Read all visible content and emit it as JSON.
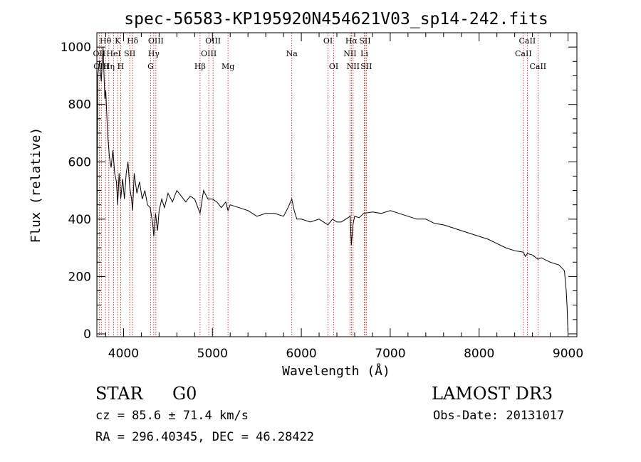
{
  "chart_data": {
    "type": "line",
    "title": "spec-56583-KP195920N454621V03_sp14-242.fits",
    "xlabel": "Wavelength (Å)",
    "ylabel": "Flux (relative)",
    "xlim": [
      3700,
      9100
    ],
    "ylim": [
      -10,
      1050
    ],
    "xticks": [
      4000,
      5000,
      6000,
      7000,
      8000,
      9000
    ],
    "yticks": [
      0,
      200,
      400,
      600,
      800,
      1000
    ],
    "grid": false,
    "series": [
      {
        "name": "flux",
        "x": [
          3700,
          3705,
          3710,
          3730,
          3750,
          3770,
          3790,
          3800,
          3820,
          3840,
          3860,
          3880,
          3900,
          3920,
          3934,
          3950,
          3968,
          3990,
          4010,
          4030,
          4050,
          4070,
          4090,
          4102,
          4120,
          4150,
          4180,
          4210,
          4240,
          4270,
          4300,
          4330,
          4340,
          4360,
          4383,
          4400,
          4430,
          4460,
          4500,
          4550,
          4600,
          4650,
          4700,
          4750,
          4800,
          4861,
          4900,
          4950,
          5000,
          5050,
          5100,
          5150,
          5175,
          5200,
          5300,
          5400,
          5500,
          5600,
          5700,
          5800,
          5850,
          5893,
          5920,
          5950,
          6000,
          6100,
          6200,
          6300,
          6350,
          6400,
          6450,
          6500,
          6550,
          6563,
          6580,
          6600,
          6650,
          6700,
          6800,
          6900,
          7000,
          7100,
          7200,
          7300,
          7400,
          7500,
          7600,
          7700,
          7800,
          7900,
          8000,
          8100,
          8200,
          8300,
          8400,
          8498,
          8520,
          8542,
          8600,
          8662,
          8700,
          8800,
          8900,
          8960,
          8980,
          8990,
          9000
        ],
        "y": [
          0,
          600,
          900,
          950,
          880,
          1000,
          820,
          850,
          700,
          620,
          580,
          640,
          560,
          530,
          450,
          560,
          470,
          540,
          470,
          560,
          600,
          510,
          470,
          430,
          560,
          490,
          530,
          470,
          500,
          450,
          440,
          380,
          340,
          420,
          360,
          430,
          470,
          440,
          490,
          460,
          500,
          480,
          460,
          480,
          470,
          420,
          500,
          470,
          470,
          460,
          440,
          460,
          430,
          450,
          440,
          430,
          410,
          420,
          420,
          410,
          440,
          470,
          430,
          400,
          400,
          390,
          400,
          380,
          400,
          390,
          390,
          400,
          410,
          310,
          380,
          410,
          405,
          420,
          425,
          420,
          430,
          420,
          410,
          400,
          400,
          385,
          380,
          370,
          360,
          350,
          340,
          330,
          315,
          300,
          290,
          285,
          270,
          280,
          275,
          260,
          265,
          250,
          240,
          220,
          150,
          90,
          0
        ]
      }
    ],
    "lines": [
      {
        "label": "Hθ",
        "wave": 3797,
        "row": 1
      },
      {
        "label": "OII",
        "wave": 3727,
        "row": 2
      },
      {
        "label": "OIII",
        "wave": 3750,
        "row": 3
      },
      {
        "label": "Hη",
        "wave": 3835,
        "row": 3
      },
      {
        "label": "HeI",
        "wave": 3889,
        "row": 2
      },
      {
        "label": "K",
        "wave": 3934,
        "row": 1
      },
      {
        "label": "H",
        "wave": 3968,
        "row": 3
      },
      {
        "label": "SII",
        "wave": 4070,
        "row": 2
      },
      {
        "label": "Hδ",
        "wave": 4102,
        "row": 1
      },
      {
        "label": "G",
        "wave": 4305,
        "row": 3
      },
      {
        "label": "OIII",
        "wave": 4364,
        "row": 1
      },
      {
        "label": "Hγ",
        "wave": 4340,
        "row": 2
      },
      {
        "label": "Hβ",
        "wave": 4861,
        "row": 3
      },
      {
        "label": "OIII",
        "wave": 5007,
        "row": 1
      },
      {
        "label": "OIII",
        "wave": 4959,
        "row": 2
      },
      {
        "label": "Mg",
        "wave": 5175,
        "row": 3
      },
      {
        "label": "Na",
        "wave": 5893,
        "row": 2
      },
      {
        "label": "OI",
        "wave": 6300,
        "row": 1
      },
      {
        "label": "OI",
        "wave": 6364,
        "row": 3
      },
      {
        "label": "Hα",
        "wave": 6563,
        "row": 1
      },
      {
        "label": "NII",
        "wave": 6548,
        "row": 2
      },
      {
        "label": "NII",
        "wave": 6583,
        "row": 3
      },
      {
        "label": "SII",
        "wave": 6716,
        "row": 1
      },
      {
        "label": "Li",
        "wave": 6708,
        "row": 2
      },
      {
        "label": "SII",
        "wave": 6731,
        "row": 3
      },
      {
        "label": "CaII",
        "wave": 8542,
        "row": 1
      },
      {
        "label": "CaII",
        "wave": 8498,
        "row": 2
      },
      {
        "label": "CaII",
        "wave": 8662,
        "row": 3
      }
    ],
    "colors": {
      "spectrum": "#000000",
      "line_marker": "#c00000"
    }
  },
  "info": {
    "object_type": "STAR",
    "subclass": "G0",
    "survey": "LAMOST DR3",
    "velocity": "cz = 85.6 ± 71.4 km/s",
    "obs_date": "Obs-Date: 20131017",
    "coords": "RA = 296.40345, DEC =  46.28422"
  }
}
